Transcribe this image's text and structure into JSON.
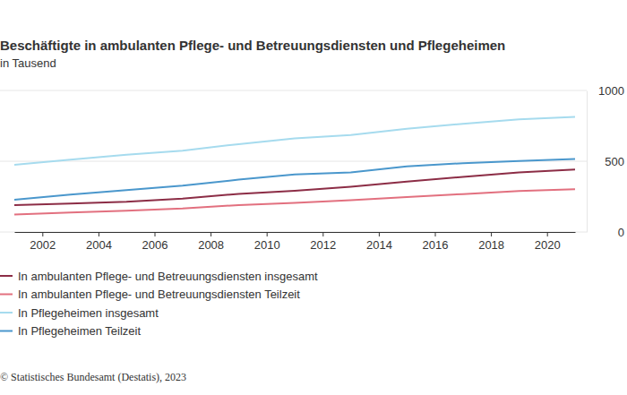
{
  "chart_data": {
    "type": "line",
    "title": "Beschäftigte in ambulanten Pflege- und Betreuungsdiensten und Pflegeheimen",
    "subtitle": "in Tausend",
    "source": "© Statistisches Bundesamt (Destatis), 2023",
    "x": [
      2001,
      2003,
      2005,
      2007,
      2009,
      2011,
      2013,
      2015,
      2017,
      2019,
      2021
    ],
    "xlim": [
      2001,
      2021
    ],
    "xticks": [
      2002,
      2004,
      2006,
      2008,
      2010,
      2012,
      2014,
      2016,
      2018,
      2020
    ],
    "ylim": [
      0,
      1000
    ],
    "yticks": [
      0,
      500,
      1000
    ],
    "grid": true,
    "legend": "bottom-left",
    "series": [
      {
        "name": "In ambulanten Pflege- und Betreuungsdiensten insgesamt",
        "color": "#8c2d46",
        "values": [
          190,
          201,
          214,
          236,
          269,
          291,
          320,
          356,
          390,
          421,
          442
        ]
      },
      {
        "name": "In ambulanten Pflege- und Betreuungsdiensten Teilzeit",
        "color": "#e2707f",
        "values": [
          124,
          138,
          151,
          166,
          190,
          205,
          224,
          247,
          268,
          289,
          302
        ]
      },
      {
        "name": "In Pflegeheimen insgesamt",
        "color": "#a6dbee",
        "values": [
          475,
          511,
          546,
          574,
          621,
          661,
          685,
          730,
          765,
          796,
          814
        ]
      },
      {
        "name": "In Pflegeheimen Teilzeit",
        "color": "#4a97cc",
        "values": [
          228,
          264,
          296,
          327,
          370,
          406,
          421,
          463,
          486,
          502,
          516
        ]
      }
    ]
  }
}
